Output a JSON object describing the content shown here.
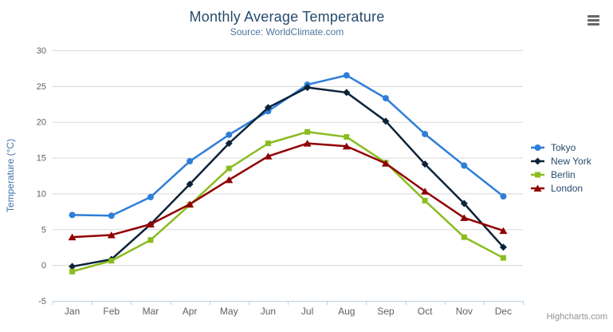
{
  "header": {
    "title": "Monthly Average Temperature",
    "subtitle": "Source: WorldClimate.com"
  },
  "chart_data": {
    "type": "line",
    "title": "Monthly Average Temperature",
    "subtitle": "Source: WorldClimate.com",
    "categories": [
      "Jan",
      "Feb",
      "Mar",
      "Apr",
      "May",
      "Jun",
      "Jul",
      "Aug",
      "Sep",
      "Oct",
      "Nov",
      "Dec"
    ],
    "series": [
      {
        "name": "Tokyo",
        "color": "#2f7ed8",
        "marker": "circle",
        "values": [
          7.0,
          6.9,
          9.5,
          14.5,
          18.2,
          21.5,
          25.2,
          26.5,
          23.3,
          18.3,
          13.9,
          9.6
        ]
      },
      {
        "name": "New York",
        "color": "#0d233a",
        "marker": "diamond",
        "values": [
          -0.2,
          0.8,
          5.7,
          11.3,
          17.0,
          22.0,
          24.8,
          24.1,
          20.1,
          14.1,
          8.6,
          2.5
        ]
      },
      {
        "name": "Berlin",
        "color": "#8bbc21",
        "marker": "square",
        "values": [
          -0.9,
          0.6,
          3.5,
          8.4,
          13.5,
          17.0,
          18.6,
          17.9,
          14.3,
          9.0,
          3.9,
          1.0
        ]
      },
      {
        "name": "London",
        "color": "#910000",
        "marker": "triangle",
        "values": [
          3.9,
          4.2,
          5.7,
          8.5,
          11.9,
          15.2,
          17.0,
          16.6,
          14.2,
          10.3,
          6.6,
          4.8
        ]
      }
    ],
    "xlabel": "",
    "ylabel": "Temperature (°C)",
    "ylim": [
      -5,
      30
    ],
    "yticks": [
      -5,
      0,
      5,
      10,
      15,
      20,
      25,
      30
    ],
    "grid": true,
    "legend_position": "right"
  },
  "theme": {
    "title_color": "#274b6d",
    "subtitle_color": "#4d759e",
    "axis_title_color": "#4572a7",
    "axis_label_color": "#606060",
    "grid_color": "#d8d8d8",
    "axis_line_color": "#c0d0e0",
    "legend_text_color": "#274b6d",
    "credits_color": "#909090",
    "menu_icon_color": "#666666"
  },
  "menu": {
    "icon": "hamburger-icon"
  },
  "credits": {
    "label": "Highcharts.com"
  }
}
